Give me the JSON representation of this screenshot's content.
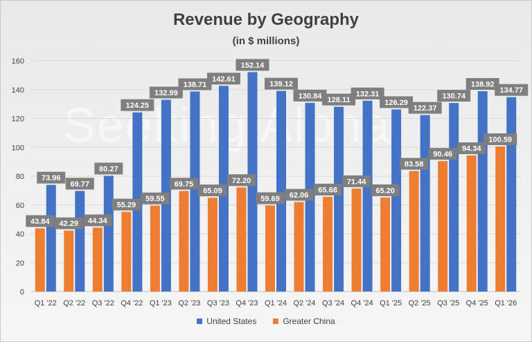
{
  "chart_data": {
    "type": "bar",
    "title": "Revenue by Geography",
    "subtitle": "(in $ millions)",
    "categories": [
      "Q1 '22",
      "Q2 '22",
      "Q3 '22",
      "Q4 '22",
      "Q1 '23",
      "Q2 '23",
      "Q3 '23",
      "Q4 '23",
      "Q1 '24",
      "Q2 '24",
      "Q3 '24",
      "Q4 '24",
      "Q1 '25",
      "Q2 '25",
      "Q3 '25",
      "Q4 '25",
      "Q1 '26"
    ],
    "series": [
      {
        "name": "United States",
        "color": "#4472C4",
        "values": [
          73.96,
          69.77,
          80.27,
          124.25,
          132.99,
          138.71,
          142.61,
          152.14,
          139.12,
          130.84,
          128.11,
          132.31,
          126.29,
          122.37,
          130.74,
          138.92,
          134.77
        ]
      },
      {
        "name": "Greater China",
        "color": "#ED7D31",
        "values": [
          43.84,
          42.29,
          44.34,
          55.29,
          59.55,
          69.75,
          65.09,
          72.2,
          59.69,
          62.06,
          65.68,
          71.44,
          65.2,
          83.58,
          90.46,
          94.34,
          100.59
        ]
      }
    ],
    "ylim": [
      0,
      160
    ],
    "yticks": [
      0,
      20,
      40,
      60,
      80,
      100,
      120,
      140,
      160
    ],
    "grid": true,
    "legend_position": "bottom",
    "data_label_color": "#7f7f7f",
    "watermark": "Seeking Alpha"
  }
}
